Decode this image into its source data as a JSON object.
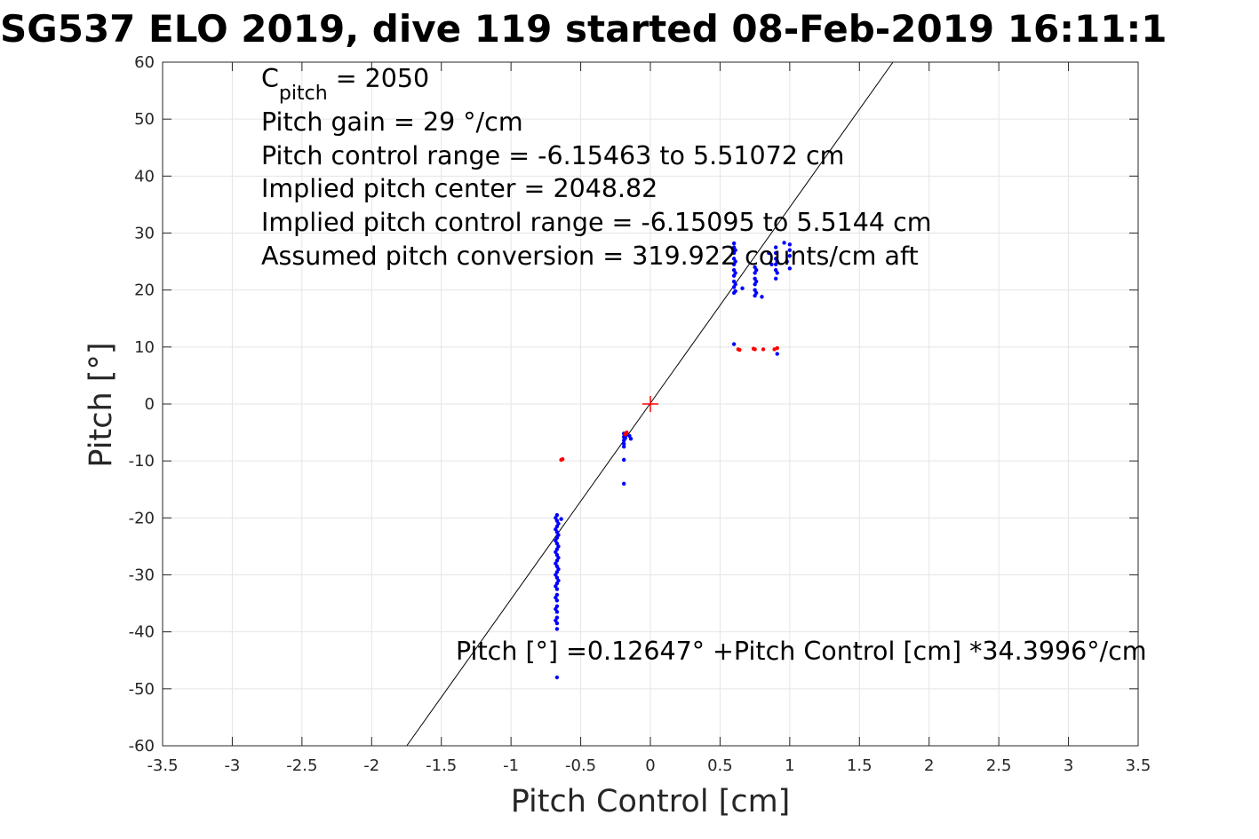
{
  "chart_data": {
    "type": "scatter",
    "title": "SG537 ELO 2019, dive 119 started 08-Feb-2019 16:11:1",
    "xlabel": "Pitch Control [cm]",
    "ylabel": "Pitch [°]",
    "xlim": [
      -3.5,
      3.5
    ],
    "ylim": [
      -60,
      60
    ],
    "xticks": [
      -3.5,
      -3,
      -2.5,
      -2,
      -1.5,
      -1,
      -0.5,
      0,
      0.5,
      1,
      1.5,
      2,
      2.5,
      3,
      3.5
    ],
    "yticks": [
      -60,
      -50,
      -40,
      -30,
      -20,
      -10,
      0,
      10,
      20,
      30,
      40,
      50,
      60
    ],
    "grid": true,
    "annotations": {
      "c_pitch_base": "C",
      "c_pitch_sub": "pitch",
      "c_pitch_value": " = 2050",
      "lines": [
        "Pitch gain = 29 °/cm",
        "Pitch control range = -6.15463 to 5.51072 cm",
        "Implied pitch center = 2048.82",
        "Implied pitch control range = -6.15095 to 5.5144 cm",
        "Assumed pitch conversion = 319.922 counts/cm aft"
      ],
      "fit_equation": "Pitch [°] =0.12647° +Pitch Control [cm] *34.3996°/cm"
    },
    "fit_line": {
      "intercept": 0.12647,
      "slope": 34.3996,
      "color": "#000000"
    },
    "center_marker": {
      "x": 0,
      "y": 0,
      "color": "#ff0000"
    },
    "series": [
      {
        "color": "#0000ff",
        "points": [
          [
            -0.67,
            -19.5
          ],
          [
            -0.67,
            -20.5
          ],
          [
            -0.67,
            -21.5
          ],
          [
            -0.67,
            -22.5
          ],
          [
            -0.67,
            -23.5
          ],
          [
            -0.67,
            -24.5
          ],
          [
            -0.67,
            -25.5
          ],
          [
            -0.67,
            -26.5
          ],
          [
            -0.67,
            -27.5
          ],
          [
            -0.67,
            -28.5
          ],
          [
            -0.67,
            -29.5
          ],
          [
            -0.67,
            -30.5
          ],
          [
            -0.67,
            -31.5
          ],
          [
            -0.67,
            -32.5
          ],
          [
            -0.67,
            -33.5
          ],
          [
            -0.67,
            -34.5
          ],
          [
            -0.67,
            -35.5
          ],
          [
            -0.67,
            -36.5
          ],
          [
            -0.67,
            -37.5
          ],
          [
            -0.67,
            -38.5
          ],
          [
            -0.67,
            -39.5
          ],
          [
            -0.68,
            -20
          ],
          [
            -0.68,
            -22
          ],
          [
            -0.68,
            -24
          ],
          [
            -0.68,
            -26
          ],
          [
            -0.68,
            -28
          ],
          [
            -0.68,
            -30
          ],
          [
            -0.68,
            -32
          ],
          [
            -0.68,
            -34
          ],
          [
            -0.68,
            -36
          ],
          [
            -0.68,
            -38
          ],
          [
            -0.66,
            -21
          ],
          [
            -0.66,
            -23
          ],
          [
            -0.66,
            -25
          ],
          [
            -0.66,
            -27
          ],
          [
            -0.66,
            -29
          ],
          [
            -0.66,
            -31
          ],
          [
            -0.64,
            -20.2
          ],
          [
            -0.67,
            -48.0
          ],
          [
            -0.19,
            -5.2
          ],
          [
            -0.19,
            -5.8
          ],
          [
            -0.19,
            -6.4
          ],
          [
            -0.19,
            -7.0
          ],
          [
            -0.19,
            -7.5
          ],
          [
            -0.19,
            -9.8
          ],
          [
            -0.19,
            -14.0
          ],
          [
            -0.18,
            -5.5
          ],
          [
            -0.18,
            -6.0
          ],
          [
            -0.15,
            -5.6
          ],
          [
            -0.14,
            -6.1
          ],
          [
            0.6,
            19.5
          ],
          [
            0.6,
            20.5
          ],
          [
            0.6,
            21.5
          ],
          [
            0.6,
            22.5
          ],
          [
            0.6,
            23.5
          ],
          [
            0.6,
            24.5
          ],
          [
            0.6,
            25.5
          ],
          [
            0.6,
            26.5
          ],
          [
            0.6,
            27.5
          ],
          [
            0.61,
            19.8
          ],
          [
            0.61,
            21.0
          ],
          [
            0.61,
            23.0
          ],
          [
            0.61,
            25.0
          ],
          [
            0.61,
            27.0
          ],
          [
            0.6,
            28.2
          ],
          [
            0.6,
            10.5
          ],
          [
            0.66,
            20.3
          ],
          [
            0.75,
            19.0
          ],
          [
            0.75,
            20.0
          ],
          [
            0.75,
            21.0
          ],
          [
            0.75,
            22.0
          ],
          [
            0.75,
            23.0
          ],
          [
            0.75,
            24.0
          ],
          [
            0.76,
            19.5
          ],
          [
            0.76,
            21.5
          ],
          [
            0.76,
            23.5
          ],
          [
            0.8,
            18.8
          ],
          [
            0.85,
            26.5
          ],
          [
            0.87,
            24.5
          ],
          [
            0.9,
            22.0
          ],
          [
            0.9,
            23.5
          ],
          [
            0.9,
            24.5
          ],
          [
            0.9,
            25.5
          ],
          [
            0.9,
            26.5
          ],
          [
            0.9,
            27.5
          ],
          [
            0.91,
            23.0
          ],
          [
            0.91,
            25.0
          ],
          [
            0.91,
            8.8
          ],
          [
            0.96,
            28.3
          ],
          [
            0.98,
            25.0
          ],
          [
            1.0,
            26.0
          ],
          [
            1.0,
            27.0
          ],
          [
            1.0,
            28.0
          ],
          [
            1.0,
            23.8
          ]
        ]
      },
      {
        "color": "#ff0000",
        "points": [
          [
            -0.63,
            -9.7
          ],
          [
            -0.64,
            -9.8
          ],
          [
            -0.17,
            -5.0
          ],
          [
            -0.18,
            -5.3
          ],
          [
            0.63,
            9.6
          ],
          [
            0.64,
            9.5
          ],
          [
            0.74,
            9.7
          ],
          [
            0.75,
            9.6
          ],
          [
            0.81,
            9.6
          ],
          [
            0.89,
            9.6
          ],
          [
            0.91,
            9.8
          ]
        ]
      }
    ]
  }
}
